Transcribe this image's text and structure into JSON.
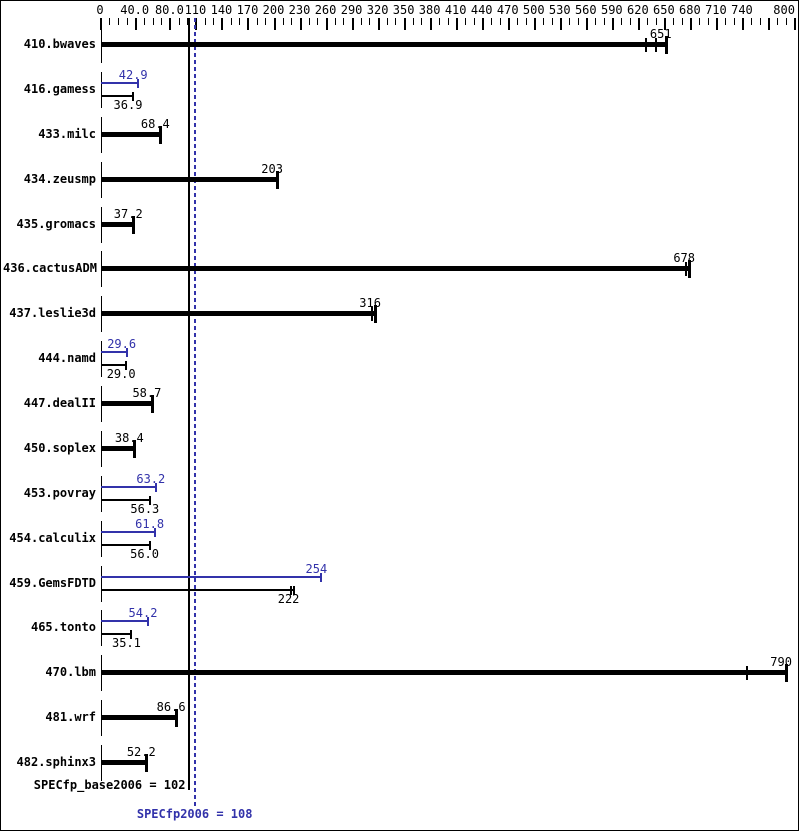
{
  "chart_data": {
    "type": "bar",
    "orientation": "horizontal",
    "title": "",
    "xlabel": "",
    "ylabel": "",
    "legend": "none",
    "grid": false,
    "axis": {
      "min": 0,
      "max": 800,
      "minor_step": 10,
      "labeled_ticks": [
        {
          "label": "0",
          "value": 0
        },
        {
          "label": "40.0",
          "value": 40
        },
        {
          "label": "80.0",
          "value": 80
        },
        {
          "label": "110",
          "value": 110
        },
        {
          "label": "140",
          "value": 140
        },
        {
          "label": "170",
          "value": 170
        },
        {
          "label": "200",
          "value": 200
        },
        {
          "label": "230",
          "value": 230
        },
        {
          "label": "260",
          "value": 260
        },
        {
          "label": "290",
          "value": 290
        },
        {
          "label": "320",
          "value": 320
        },
        {
          "label": "350",
          "value": 350
        },
        {
          "label": "380",
          "value": 380
        },
        {
          "label": "410",
          "value": 410
        },
        {
          "label": "440",
          "value": 440
        },
        {
          "label": "470",
          "value": 470
        },
        {
          "label": "500",
          "value": 500
        },
        {
          "label": "530",
          "value": 530
        },
        {
          "label": "560",
          "value": 560
        },
        {
          "label": "590",
          "value": 590
        },
        {
          "label": "620",
          "value": 620
        },
        {
          "label": "650",
          "value": 650
        },
        {
          "label": "680",
          "value": 680
        },
        {
          "label": "710",
          "value": 710
        },
        {
          "label": "740",
          "value": 740
        },
        {
          "label": "800",
          "value": 800
        }
      ],
      "unlabeled_major_ticks": [
        770
      ]
    },
    "colors": {
      "base_bar": "#000000",
      "peak_bar": "#3232aa",
      "background": "#ffffff",
      "border": "#000000"
    },
    "benchmarks": [
      {
        "name": "410.bwaves",
        "base": "651",
        "peak": null,
        "run_marks": [
          628,
          640
        ]
      },
      {
        "name": "416.gamess",
        "base": "36.9",
        "peak": "42.9",
        "run_marks": []
      },
      {
        "name": "433.milc",
        "base": "68.4",
        "peak": null,
        "run_marks": []
      },
      {
        "name": "434.zeusmp",
        "base": "203",
        "peak": null,
        "run_marks": []
      },
      {
        "name": "435.gromacs",
        "base": "37.2",
        "peak": null,
        "run_marks": []
      },
      {
        "name": "436.cactusADM",
        "base": "678",
        "peak": null,
        "run_marks": [
          674
        ]
      },
      {
        "name": "437.leslie3d",
        "base": "316",
        "peak": null,
        "run_marks": [
          312
        ]
      },
      {
        "name": "444.namd",
        "base": "29.0",
        "peak": "29.6",
        "run_marks": []
      },
      {
        "name": "447.dealII",
        "base": "58.7",
        "peak": null,
        "run_marks": []
      },
      {
        "name": "450.soplex",
        "base": "38.4",
        "peak": null,
        "run_marks": []
      },
      {
        "name": "453.povray",
        "base": "56.3",
        "peak": "63.2",
        "run_marks": []
      },
      {
        "name": "454.calculix",
        "base": "56.0",
        "peak": "61.8",
        "run_marks": []
      },
      {
        "name": "459.GemsFDTD",
        "base": "222",
        "peak": "254",
        "run_marks": [
          219
        ]
      },
      {
        "name": "465.tonto",
        "base": "35.1",
        "peak": "54.2",
        "run_marks": []
      },
      {
        "name": "470.lbm",
        "base": "790",
        "peak": null,
        "run_marks": [
          745
        ]
      },
      {
        "name": "481.wrf",
        "base": "86.6",
        "peak": null,
        "run_marks": []
      },
      {
        "name": "482.sphinx3",
        "base": "52.2",
        "peak": null,
        "run_marks": []
      }
    ],
    "reference_lines": [
      {
        "kind": "base",
        "value": 102,
        "style": "solid",
        "color": "#000000",
        "label": "SPECfp_base2006 = 102"
      },
      {
        "kind": "peak",
        "value": 108,
        "style": "dashed",
        "color": "#3232aa",
        "label": "SPECfp2006 = 108"
      }
    ],
    "summary": {
      "base_label": "SPECfp_base2006 = 102",
      "peak_label": "SPECfp2006 = 108",
      "base_value": "102",
      "peak_value": "108"
    }
  }
}
